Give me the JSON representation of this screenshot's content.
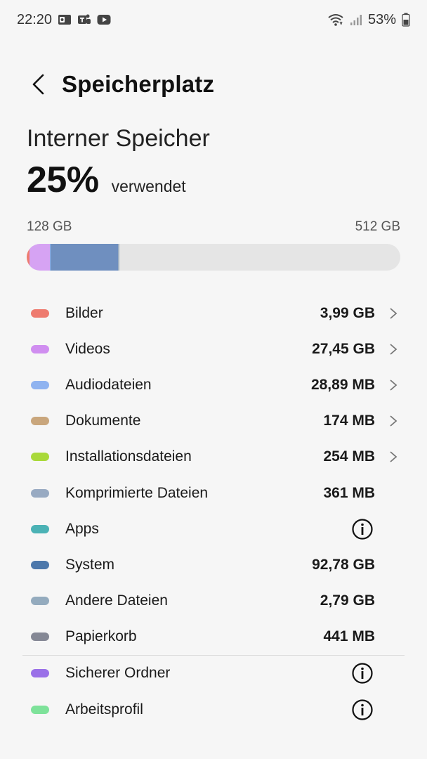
{
  "status_bar": {
    "time": "22:20",
    "battery": "53%",
    "notification_icons": [
      "outlook-icon",
      "teams-icon",
      "youtube-icon"
    ]
  },
  "header": {
    "title": "Speicherplatz"
  },
  "storage": {
    "heading": "Interner Speicher",
    "used_percent": "25%",
    "used_label": "verwendet",
    "used_capacity": "128 GB",
    "total_capacity": "512 GB",
    "bar_segments": [
      {
        "name": "Bilder",
        "color": "#ee7b6f",
        "fraction": 0.008
      },
      {
        "name": "Videos",
        "color": "#d6a3f3",
        "fraction": 0.054
      },
      {
        "name": "Audiodateien",
        "color": "#8fb3f0",
        "fraction": 0.001
      },
      {
        "name": "System",
        "color": "#6f8fbf",
        "fraction": 0.181
      },
      {
        "name": "Andere Dateien",
        "color": "#9fb0c2",
        "fraction": 0.005
      }
    ]
  },
  "categories": [
    {
      "label": "Bilder",
      "value": "3,99 GB",
      "color": "#ee7b6f",
      "trailing": "chevron"
    },
    {
      "label": "Videos",
      "value": "27,45 GB",
      "color": "#d08ef0",
      "trailing": "chevron"
    },
    {
      "label": "Audiodateien",
      "value": "28,89 MB",
      "color": "#8fb3f0",
      "trailing": "chevron"
    },
    {
      "label": "Dokumente",
      "value": "174 MB",
      "color": "#c9a67c",
      "trailing": "chevron"
    },
    {
      "label": "Installationsdateien",
      "value": "254 MB",
      "color": "#a9d93a",
      "trailing": "chevron"
    },
    {
      "label": "Komprimierte Dateien",
      "value": "361 MB",
      "color": "#98aac2",
      "trailing": "none"
    },
    {
      "label": "Apps",
      "value": "",
      "color": "#4bb2b5",
      "trailing": "info"
    },
    {
      "label": "System",
      "value": "92,78 GB",
      "color": "#4d78ab",
      "trailing": "none"
    },
    {
      "label": "Andere Dateien",
      "value": "2,79 GB",
      "color": "#94abbe",
      "trailing": "none"
    },
    {
      "label": "Papierkorb",
      "value": "441 MB",
      "color": "#858895",
      "trailing": "none"
    }
  ],
  "extra_categories": [
    {
      "label": "Sicherer Ordner",
      "value": "",
      "color": "#9a70e8",
      "trailing": "info"
    },
    {
      "label": "Arbeitsprofil",
      "value": "",
      "color": "#7ee29a",
      "trailing": "info"
    }
  ]
}
